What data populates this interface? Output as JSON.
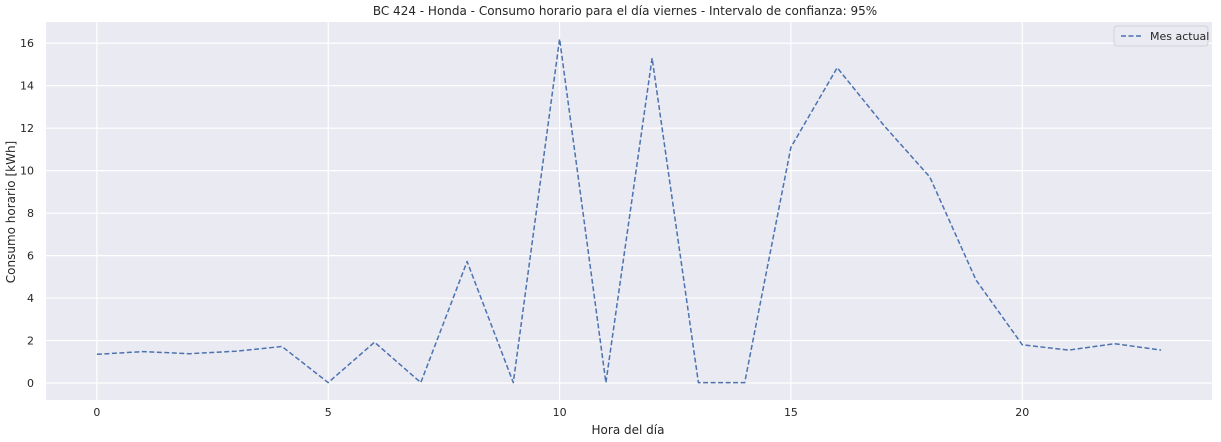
{
  "chart_data": {
    "type": "line",
    "title": "BC 424 - Honda - Consumo horario para el día viernes - Intervalo de confianza: 95%",
    "xlabel": "Hora del día",
    "ylabel": "Consumo horario [kWh]",
    "xlim": [
      -1.1,
      24.1
    ],
    "ylim": [
      -0.8,
      17.0
    ],
    "xticks": [
      0,
      5,
      10,
      15,
      20
    ],
    "yticks": [
      0,
      2,
      4,
      6,
      8,
      10,
      12,
      14,
      16
    ],
    "grid": true,
    "legend_position": "top-right",
    "series": [
      {
        "name": "Mes actual",
        "color": "#4c72b0",
        "line_style": "dashed",
        "x": [
          0,
          1,
          2,
          3,
          4,
          5,
          6,
          7,
          8,
          9,
          10,
          11,
          12,
          13,
          14,
          15,
          16,
          17,
          18,
          19,
          20,
          21,
          22,
          23
        ],
        "y": [
          1.35,
          1.48,
          1.38,
          1.5,
          1.72,
          0.02,
          1.92,
          0.02,
          5.72,
          0.02,
          16.2,
          0.02,
          15.3,
          0.02,
          0.02,
          11.1,
          14.85,
          12.15,
          9.7,
          4.85,
          1.8,
          1.55,
          1.85,
          1.55
        ]
      }
    ]
  },
  "colors": {
    "plot_background": "#eaeaf2",
    "grid": "#ffffff",
    "text": "#262626"
  }
}
